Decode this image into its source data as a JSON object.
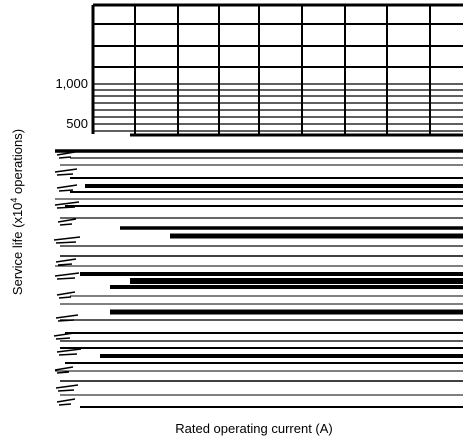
{
  "chart_data": {
    "type": "line",
    "title": "",
    "xlabel": "Rated operating current (A)",
    "ylabel_main": "Service life (x10",
    "ylabel_sup": "4",
    "ylabel_tail": " operations)",
    "yscale": "log",
    "y_ticks": [
      {
        "value": 1000,
        "label": "1,000"
      },
      {
        "value": 500,
        "label": "500"
      }
    ],
    "grid": true,
    "series": [],
    "colors": {
      "line": "#000000",
      "background": "#ffffff"
    }
  }
}
